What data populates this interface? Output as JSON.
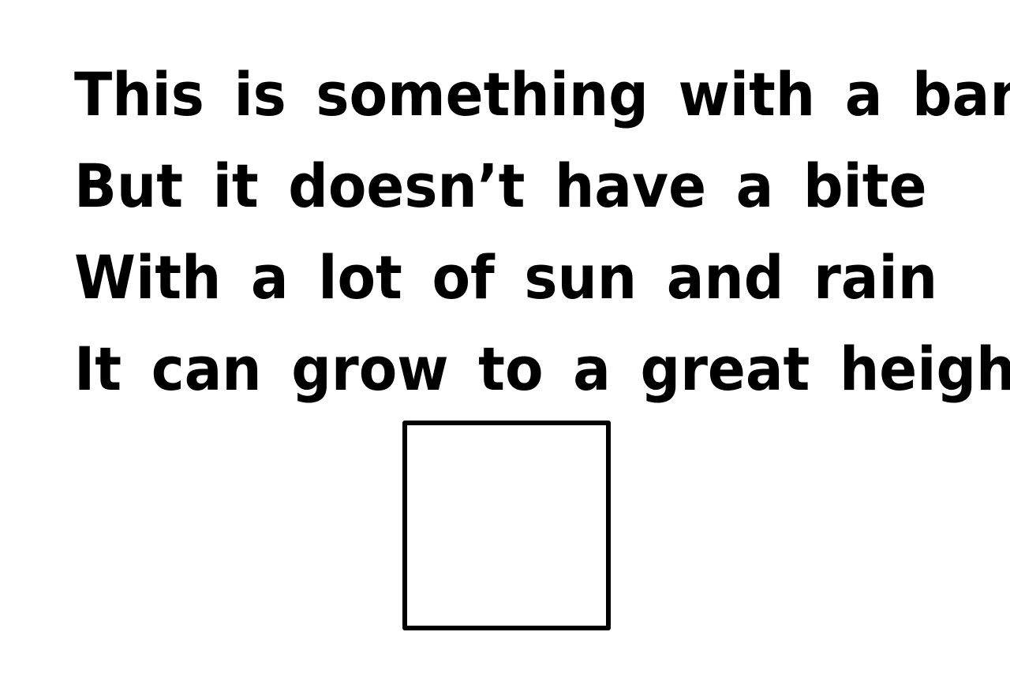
{
  "riddle": {
    "lines": [
      "This is something with a bark",
      "But it doesn’t have a bite",
      "With a lot of sun and rain",
      "It can grow to a great height"
    ]
  },
  "answer_box": {
    "value": ""
  },
  "colors": {
    "text": "#000000",
    "background": "#ffffff",
    "box_border": "#000000"
  }
}
